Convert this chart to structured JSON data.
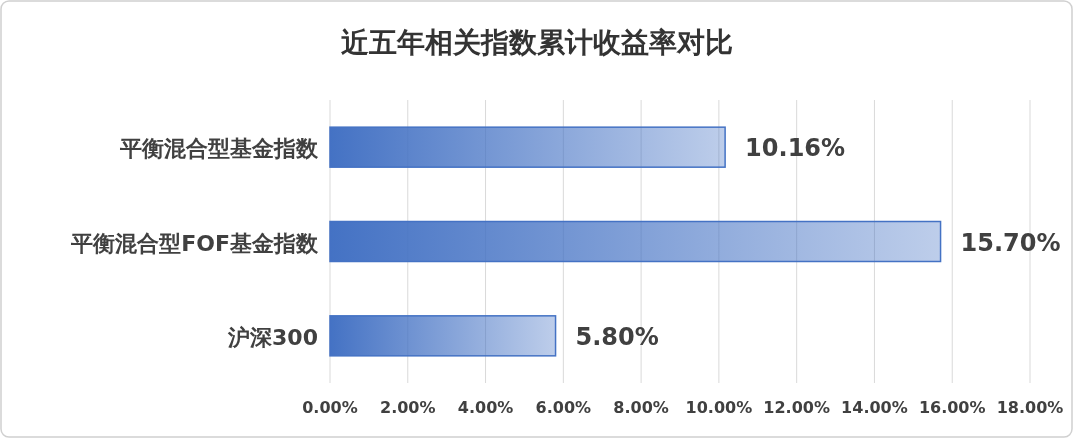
{
  "chart_data": {
    "type": "bar",
    "orientation": "horizontal",
    "title": "近五年相关指数累计收益率对比",
    "categories": [
      "平衡混合型基金指数",
      "平衡混合型FOF基金指数",
      "沪深300"
    ],
    "values": [
      10.16,
      15.7,
      5.8
    ],
    "value_labels": [
      "10.16%",
      "15.70%",
      "5.80%"
    ],
    "color": "#4472c4",
    "xlim": [
      0,
      18
    ],
    "xticks": [
      {
        "value": 0,
        "label": "0.00%"
      },
      {
        "value": 2,
        "label": "2.00%"
      },
      {
        "value": 4,
        "label": "4.00%"
      },
      {
        "value": 6,
        "label": "6.00%"
      },
      {
        "value": 8,
        "label": "8.00%"
      },
      {
        "value": 10,
        "label": "10.00%"
      },
      {
        "value": 12,
        "label": "12.00%"
      },
      {
        "value": 14,
        "label": "14.00%"
      },
      {
        "value": 16,
        "label": "16.00%"
      },
      {
        "value": 18,
        "label": "18.00%"
      }
    ],
    "grid": "x"
  }
}
